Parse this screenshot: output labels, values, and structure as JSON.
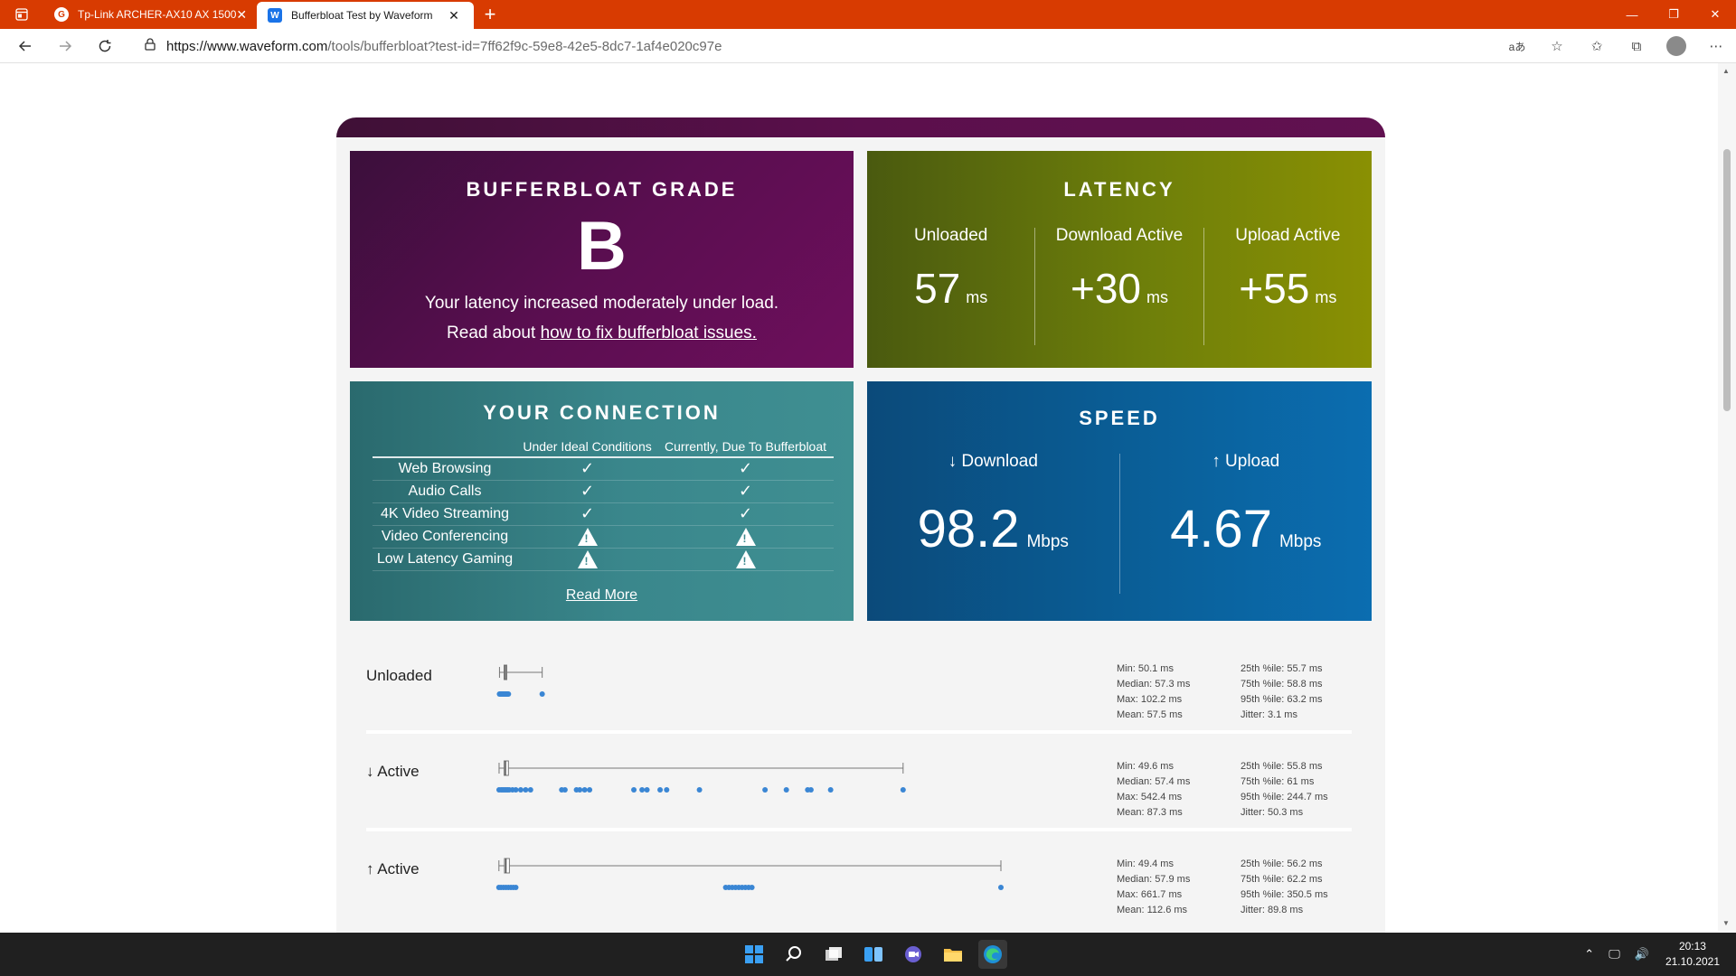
{
  "browser": {
    "tabs": [
      {
        "title": "Tp-Link ARCHER-AX10 AX 1500 ",
        "favicon": "google-icon",
        "active": false
      },
      {
        "title": "Bufferbloat Test by Waveform",
        "favicon": "waveform-icon",
        "active": true
      }
    ],
    "url_host": "https://www.waveform.com",
    "url_path": "/tools/bufferbloat?test-id=7ff62f9c-59e8-42e5-8dc7-1af4e020c97e"
  },
  "grade": {
    "title": "BUFFERBLOAT GRADE",
    "letter": "B",
    "description": "Your latency increased moderately under load.",
    "link_prefix": "Read about ",
    "link_text": "how to fix bufferbloat issues."
  },
  "latency": {
    "title": "LATENCY",
    "columns": [
      {
        "label": "Unloaded",
        "value": "57",
        "unit": "ms"
      },
      {
        "label": "Download Active",
        "value": "+30",
        "unit": "ms"
      },
      {
        "label": "Upload Active",
        "value": "+55",
        "unit": "ms"
      }
    ]
  },
  "connection": {
    "title": "YOUR CONNECTION",
    "col_ideal": "Under Ideal Conditions",
    "col_current": "Currently, Due To Bufferbloat",
    "rows": [
      {
        "name": "Web Browsing",
        "ideal": "ok",
        "current": "ok"
      },
      {
        "name": "Audio Calls",
        "ideal": "ok",
        "current": "ok"
      },
      {
        "name": "4K Video Streaming",
        "ideal": "ok",
        "current": "ok"
      },
      {
        "name": "Video Conferencing",
        "ideal": "warn",
        "current": "warn"
      },
      {
        "name": "Low Latency Gaming",
        "ideal": "warn",
        "current": "warn"
      }
    ],
    "read_more": "Read More"
  },
  "speed": {
    "title": "SPEED",
    "download_label": "↓ Download",
    "download_value": "98.2",
    "upload_label": "↑ Upload",
    "upload_value": "4.67",
    "unit": "Mbps"
  },
  "stats": [
    {
      "name": "Unloaded",
      "left": [
        "Min: 50.1 ms",
        "Median: 57.3 ms",
        "Max: 102.2 ms",
        "Mean: 57.5 ms"
      ],
      "right": [
        "25th %ile: 55.7 ms",
        "75th %ile: 58.8 ms",
        "95th %ile: 63.2 ms",
        "Jitter: 3.1 ms"
      ],
      "min": 50.1,
      "q1": 55.7,
      "median": 57.3,
      "q3": 58.8,
      "max": 102.2,
      "points": [
        50.1,
        51,
        52,
        53,
        54,
        55,
        56,
        57,
        58,
        59,
        60,
        61,
        102.2
      ]
    },
    {
      "name": "↓ Active",
      "left": [
        "Min: 49.6 ms",
        "Median: 57.4 ms",
        "Max: 542.4 ms",
        "Mean: 87.3 ms"
      ],
      "right": [
        "25th %ile: 55.8 ms",
        "75th %ile: 61 ms",
        "95th %ile: 244.7 ms",
        "Jitter: 50.3 ms"
      ],
      "min": 49.6,
      "q1": 55.8,
      "median": 57.4,
      "q3": 61,
      "max": 542.4,
      "points": [
        49.6,
        52,
        54,
        56,
        58,
        60,
        62,
        66,
        70,
        76,
        82,
        88,
        126,
        130,
        144,
        148,
        154,
        160,
        214,
        224,
        230,
        246,
        254,
        294,
        374,
        400,
        426,
        430,
        454,
        542.4
      ]
    },
    {
      "name": "↑ Active",
      "left": [
        "Min: 49.4 ms",
        "Median: 57.9 ms",
        "Max: 661.7 ms",
        "Mean: 112.6 ms"
      ],
      "right": [
        "25th %ile: 56.2 ms",
        "75th %ile: 62.2 ms",
        "95th %ile: 350.5 ms",
        "Jitter: 89.8 ms"
      ],
      "min": 49.4,
      "q1": 56.2,
      "median": 57.9,
      "q3": 62.2,
      "max": 661.7,
      "points": [
        49.4,
        52,
        55,
        58,
        61,
        64,
        67,
        70,
        326,
        330,
        334,
        338,
        342,
        346,
        350,
        354,
        358,
        661.7
      ]
    }
  ],
  "stats_scale_max": 661.7,
  "taskbar": {
    "time": "20:13",
    "date": "21.10.2021"
  }
}
